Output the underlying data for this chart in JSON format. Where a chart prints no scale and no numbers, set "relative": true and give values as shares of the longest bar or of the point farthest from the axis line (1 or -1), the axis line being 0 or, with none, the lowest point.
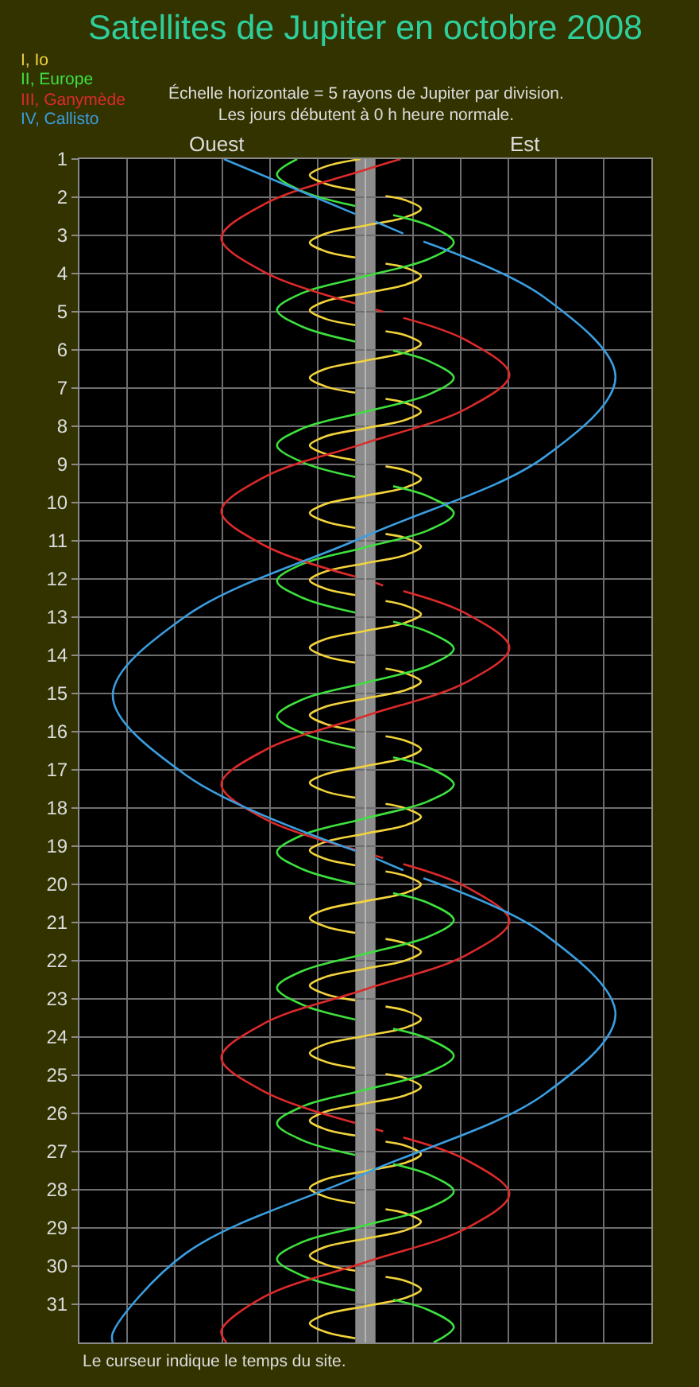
{
  "chart_data": {
    "type": "line",
    "orientation": "horizontal",
    "relative": true,
    "title": "Satellites de Jupiter en octobre 2008",
    "subtitle": "Échelle horizontale = 5 rayons de Jupiter par division.\nLes jours débutent à 0 h heure normale.",
    "annotations": [
      "Ouest",
      "Est",
      "Le curseur indique le temps du site."
    ],
    "ylim": [
      32,
      1
    ],
    "yticks": [
      1,
      2,
      3,
      4,
      5,
      6,
      7,
      8,
      9,
      10,
      11,
      12,
      13,
      14,
      15,
      16,
      17,
      18,
      19,
      20,
      21,
      22,
      23,
      24,
      25,
      26,
      27,
      28,
      29,
      30,
      31
    ],
    "tick_labels": "y",
    "grid": true,
    "bands": [
      {
        "axis": "x",
        "from": -0.04,
        "to": 0.04,
        "color": "#8c8c8c"
      }
    ],
    "series": [
      {
        "name": "I, Io",
        "color": "#f2d33c",
        "x": [
          1,
          1.2,
          1.42,
          1.64,
          1.81,
          null,
          1.97,
          2.08,
          2.3,
          2.52,
          2.74,
          2.96,
          3.19,
          3.41,
          3.58,
          null,
          3.74,
          3.85,
          4.07,
          4.29,
          4.51,
          4.73,
          4.96,
          5.18,
          5.35,
          null,
          5.51,
          5.62,
          5.84,
          6.06,
          6.28,
          6.5,
          6.73,
          6.95,
          7.12,
          null,
          7.28,
          7.39,
          7.61,
          7.83,
          8.05,
          8.27,
          8.5,
          8.72,
          8.89,
          null,
          9.05,
          9.16,
          9.38,
          9.6,
          9.82,
          10.04,
          10.27,
          10.49,
          10.66,
          null,
          10.82,
          10.93,
          11.15,
          11.37,
          11.59,
          11.81,
          12.03,
          12.25,
          12.42,
          null,
          12.58,
          12.7,
          12.92,
          13.14,
          13.36,
          13.58,
          13.8,
          14.02,
          14.19,
          null,
          14.35,
          14.47,
          14.69,
          14.91,
          15.13,
          15.35,
          15.57,
          15.79,
          15.96,
          null,
          16.12,
          16.24,
          16.46,
          16.68,
          16.9,
          17.12,
          17.34,
          17.56,
          17.73,
          null,
          17.89,
          18.01,
          18.23,
          18.45,
          18.67,
          18.89,
          19.11,
          19.33,
          19.5,
          null,
          19.66,
          19.78,
          20,
          20.22,
          20.44,
          20.66,
          20.88,
          21.1,
          21.27,
          null,
          21.43,
          21.55,
          21.77,
          21.99,
          22.21,
          22.43,
          22.65,
          22.87,
          23.04,
          null,
          23.2,
          23.31,
          23.53,
          23.75,
          23.97,
          24.19,
          24.42,
          24.64,
          24.81,
          null,
          24.97,
          25.08,
          25.3,
          25.52,
          25.74,
          25.96,
          26.19,
          26.41,
          26.58,
          null,
          26.74,
          26.85,
          27.07,
          27.29,
          27.51,
          27.73,
          27.96,
          28.18,
          28.35,
          null,
          28.51,
          28.62,
          28.84,
          29.06,
          29.28,
          29.5,
          29.73,
          29.95,
          30.12,
          null,
          30.28,
          30.39,
          30.61,
          30.83,
          31.05,
          31.27,
          31.5,
          31.72,
          31.89
        ],
        "values": [
          -0.02,
          -0.16,
          -0.22,
          -0.16,
          -0.04,
          null,
          0.08,
          0.16,
          0.22,
          0.16,
          0,
          -0.16,
          -0.22,
          -0.16,
          -0.04,
          null,
          0.08,
          0.16,
          0.22,
          0.16,
          0,
          -0.16,
          -0.22,
          -0.16,
          -0.04,
          null,
          0.08,
          0.16,
          0.22,
          0.16,
          0,
          -0.16,
          -0.22,
          -0.16,
          -0.04,
          null,
          0.08,
          0.16,
          0.22,
          0.16,
          0,
          -0.16,
          -0.22,
          -0.16,
          -0.04,
          null,
          0.08,
          0.16,
          0.22,
          0.16,
          0,
          -0.16,
          -0.22,
          -0.16,
          -0.04,
          null,
          0.08,
          0.16,
          0.22,
          0.16,
          0,
          -0.16,
          -0.22,
          -0.16,
          -0.04,
          null,
          0.08,
          0.16,
          0.22,
          0.16,
          0,
          -0.16,
          -0.22,
          -0.16,
          -0.04,
          null,
          0.08,
          0.16,
          0.22,
          0.16,
          0,
          -0.16,
          -0.22,
          -0.16,
          -0.04,
          null,
          0.08,
          0.16,
          0.22,
          0.16,
          0,
          -0.16,
          -0.22,
          -0.16,
          -0.04,
          null,
          0.08,
          0.16,
          0.22,
          0.16,
          0,
          -0.16,
          -0.22,
          -0.16,
          -0.04,
          null,
          0.08,
          0.16,
          0.22,
          0.16,
          0,
          -0.16,
          -0.22,
          -0.16,
          -0.04,
          null,
          0.08,
          0.16,
          0.22,
          0.16,
          0,
          -0.16,
          -0.22,
          -0.16,
          -0.04,
          null,
          0.08,
          0.16,
          0.22,
          0.16,
          0,
          -0.16,
          -0.22,
          -0.16,
          -0.04,
          null,
          0.08,
          0.16,
          0.22,
          0.16,
          0,
          -0.16,
          -0.22,
          -0.16,
          -0.04,
          null,
          0.08,
          0.16,
          0.22,
          0.16,
          0,
          -0.16,
          -0.22,
          -0.16,
          -0.04,
          null,
          0.08,
          0.16,
          0.22,
          0.16,
          0,
          -0.16,
          -0.22,
          -0.16,
          -0.04,
          null,
          0.08,
          0.16,
          0.22,
          0.16,
          0,
          -0.16,
          -0.22,
          -0.16,
          -0.04
        ]
      },
      {
        "name": "II, Europe",
        "color": "#3ee03e",
        "x": [
          1,
          1.4,
          1.84,
          2.23,
          null,
          2.47,
          2.74,
          3.18,
          3.62,
          4.07,
          4.51,
          4.95,
          5.39,
          5.78,
          null,
          6.02,
          6.29,
          6.73,
          7.17,
          7.62,
          8.06,
          8.5,
          8.94,
          9.33,
          null,
          9.57,
          9.84,
          10.28,
          10.72,
          11.17,
          11.61,
          12.05,
          12.49,
          12.88,
          null,
          13.12,
          13.39,
          13.83,
          14.27,
          14.72,
          15.16,
          15.6,
          16.04,
          16.43,
          null,
          16.67,
          16.94,
          17.38,
          17.82,
          18.27,
          18.71,
          19.16,
          19.6,
          19.99,
          null,
          20.23,
          20.49,
          20.93,
          21.37,
          21.82,
          22.27,
          22.71,
          23.15,
          23.54,
          null,
          23.78,
          24.05,
          24.49,
          24.93,
          25.38,
          25.82,
          26.26,
          26.7,
          27.09,
          null,
          27.33,
          27.6,
          28.04,
          28.48,
          28.93,
          29.37,
          29.81,
          30.25,
          30.64,
          null,
          30.88,
          31.15,
          31.59,
          32
        ],
        "values": [
          -0.27,
          -0.35,
          -0.25,
          -0.04,
          null,
          0.11,
          0.25,
          0.35,
          0.25,
          0,
          -0.25,
          -0.35,
          -0.25,
          -0.04,
          null,
          0.11,
          0.25,
          0.35,
          0.25,
          0,
          -0.25,
          -0.35,
          -0.25,
          -0.04,
          null,
          0.11,
          0.25,
          0.35,
          0.25,
          0,
          -0.25,
          -0.35,
          -0.25,
          -0.04,
          null,
          0.11,
          0.25,
          0.35,
          0.25,
          0,
          -0.25,
          -0.35,
          -0.25,
          -0.04,
          null,
          0.11,
          0.25,
          0.35,
          0.25,
          0,
          -0.25,
          -0.35,
          -0.25,
          -0.04,
          null,
          0.11,
          0.25,
          0.35,
          0.25,
          0,
          -0.25,
          -0.35,
          -0.25,
          -0.04,
          null,
          0.11,
          0.25,
          0.35,
          0.25,
          0,
          -0.25,
          -0.35,
          -0.25,
          -0.04,
          null,
          0.11,
          0.25,
          0.35,
          0.25,
          0,
          -0.25,
          -0.35,
          -0.25,
          -0.04,
          null,
          0.11,
          0.25,
          0.35,
          0.27
        ]
      },
      {
        "name": "III, Ganymède",
        "color": "#dc2a2a",
        "x": [
          1,
          1.28,
          2.18,
          3.07,
          3.96,
          4.78,
          null,
          4.94,
          5,
          null,
          5.16,
          5.75,
          6.65,
          7.54,
          8.44,
          9.33,
          10.23,
          11.12,
          11.94,
          null,
          12.1,
          12.17,
          null,
          12.32,
          12.91,
          13.8,
          14.7,
          15.59,
          16.49,
          17.38,
          18.28,
          19.09,
          null,
          19.25,
          19.31,
          null,
          19.47,
          20.07,
          20.96,
          21.85,
          22.75,
          23.64,
          24.54,
          25.43,
          26.25,
          null,
          26.41,
          26.47,
          null,
          26.63,
          27.22,
          28.11,
          29.01,
          29.9,
          30.8,
          31.69,
          32
        ],
        "values": [
          0.14,
          0,
          -0.4,
          -0.57,
          -0.4,
          -0.04,
          null,
          0.04,
          0.07,
          null,
          0.15,
          0.4,
          0.57,
          0.4,
          0,
          -0.4,
          -0.57,
          -0.4,
          -0.04,
          null,
          0.04,
          0.07,
          null,
          0.15,
          0.4,
          0.57,
          0.4,
          0,
          -0.4,
          -0.57,
          -0.4,
          -0.04,
          null,
          0.04,
          0.07,
          null,
          0.15,
          0.4,
          0.57,
          0.4,
          0,
          -0.4,
          -0.57,
          -0.4,
          -0.04,
          null,
          0.04,
          0.07,
          null,
          0.15,
          0.4,
          0.57,
          0.4,
          0,
          -0.4,
          -0.57,
          -0.55
        ]
      },
      {
        "name": "IV, Callisto",
        "color": "#3a9ee0",
        "x": [
          1,
          2.44,
          null,
          2.64,
          2.95,
          null,
          3.16,
          4.63,
          6.71,
          8.8,
          10.88,
          12.97,
          15.05,
          17.14,
          19.12,
          null,
          19.32,
          19.63,
          null,
          19.84,
          21.31,
          23.4,
          25.49,
          27.57,
          29.66,
          31.75,
          32
        ],
        "values": [
          -0.56,
          -0.04,
          null,
          0.04,
          0.15,
          null,
          0.23,
          0.71,
          0.99,
          0.71,
          0,
          -0.71,
          -1,
          -0.71,
          -0.04,
          null,
          0.04,
          0.15,
          null,
          0.23,
          0.71,
          0.99,
          0.71,
          0,
          -0.71,
          -1,
          -1
        ]
      }
    ]
  }
}
